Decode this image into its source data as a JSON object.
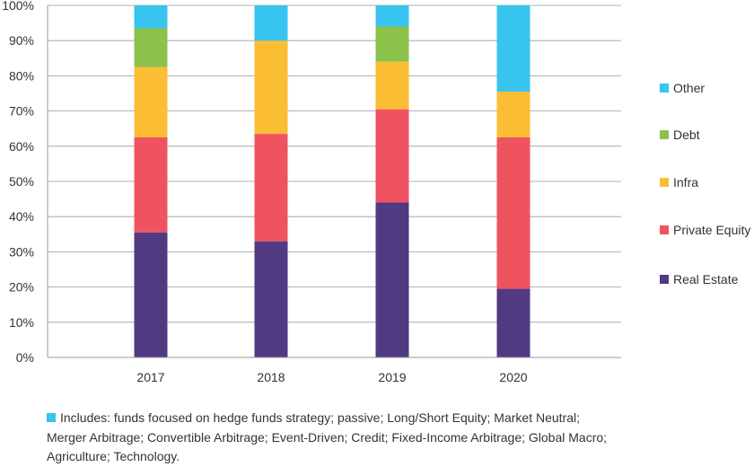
{
  "chart_data": {
    "type": "bar",
    "stacked": true,
    "normalized": true,
    "title": "",
    "xlabel": "",
    "ylabel": "",
    "categories": [
      "2017",
      "2018",
      "2019",
      "2020"
    ],
    "ylim": [
      0,
      100
    ],
    "yticks": [
      "0%",
      "10%",
      "20%",
      "30%",
      "40%",
      "50%",
      "60%",
      "70%",
      "80%",
      "90%",
      "100%"
    ],
    "grid": true,
    "legend_position": "right",
    "series": [
      {
        "name": "Real Estate",
        "color": "#513a82",
        "values": [
          35.5,
          33,
          44,
          19.5
        ]
      },
      {
        "name": "Private Equity",
        "color": "#ef5360",
        "values": [
          27,
          30.5,
          26.5,
          43
        ]
      },
      {
        "name": "Infra",
        "color": "#fbbd34",
        "values": [
          20,
          26.5,
          13.5,
          13
        ]
      },
      {
        "name": "Debt",
        "color": "#8cc14a",
        "values": [
          11,
          0,
          10,
          0
        ]
      },
      {
        "name": "Other",
        "color": "#37c4ef",
        "values": [
          6.5,
          10,
          6,
          24.5
        ]
      }
    ],
    "legend_order": [
      "Other",
      "Debt",
      "Infra",
      "Private Equity",
      "Real Estate"
    ]
  },
  "footnote": {
    "swatch_color": "#37c4ef",
    "text": "Includes: funds focused on hedge funds strategy; passive; Long/Short Equity; Market Neutral; Merger Arbitrage; Convertible Arbitrage; Event-Driven; Credit; Fixed-Income Arbitrage; Global Macro; Agriculture; Technology."
  }
}
